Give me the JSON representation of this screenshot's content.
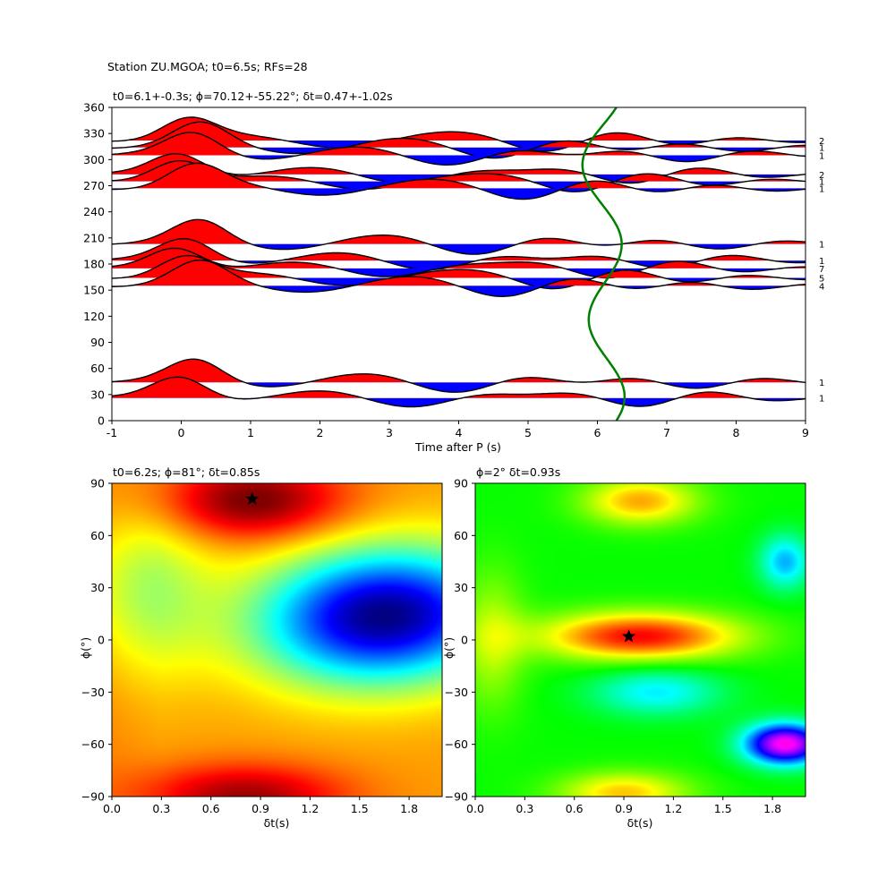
{
  "figure": {
    "suptitle": "Station ZU.MGOA; t0=6.5s; RFs=28"
  },
  "chart_data": [
    {
      "type": "line",
      "title": "t0=6.1+-0.3s; ϕ=70.12+-55.22°; δt=0.47+-1.02s",
      "xlabel": "Time after P (s)",
      "ylabel": "",
      "xlim": [
        -1,
        9
      ],
      "ylim": [
        0,
        360
      ],
      "xticks": [
        -1,
        0,
        1,
        2,
        3,
        4,
        5,
        6,
        7,
        8,
        9
      ],
      "yticks": [
        0,
        30,
        60,
        90,
        120,
        150,
        180,
        210,
        240,
        270,
        300,
        330,
        360
      ],
      "grid": false,
      "trace_labels": [
        {
          "baz": 322,
          "count": "2"
        },
        {
          "baz": 314,
          "count": "1"
        },
        {
          "baz": 305,
          "count": "1"
        },
        {
          "baz": 283,
          "count": "2"
        },
        {
          "baz": 275,
          "count": "1"
        },
        {
          "baz": 267,
          "count": "1"
        },
        {
          "baz": 203,
          "count": "1"
        },
        {
          "baz": 184,
          "count": "1"
        },
        {
          "baz": 175,
          "count": "7"
        },
        {
          "baz": 164,
          "count": "5"
        },
        {
          "baz": 155,
          "count": "4"
        },
        {
          "baz": 44,
          "count": "1"
        },
        {
          "baz": 26,
          "count": "1"
        }
      ],
      "fill_colors": {
        "positive": "#ff0000",
        "negative": "#0000ff"
      },
      "moveout_curve_color": "#008000",
      "moveout_curve": {
        "center_time": 6.1,
        "amplitude": 0.3
      }
    },
    {
      "type": "heatmap",
      "title": "t0=6.2s; ϕ=81°; δt=0.85s",
      "xlabel": "δt(s)",
      "ylabel": "ϕ(°)",
      "xlim": [
        0,
        2
      ],
      "ylim": [
        -90,
        90
      ],
      "xticks": [
        "0.0",
        "0.3",
        "0.6",
        "0.9",
        "1.2",
        "1.5",
        "1.8"
      ],
      "yticks": [
        "−90",
        "−60",
        "−30",
        "0",
        "30",
        "60",
        "90"
      ],
      "colormap": "jet",
      "best": {
        "dt": 0.85,
        "phi": 81
      }
    },
    {
      "type": "heatmap",
      "title": "ϕ=2° δt=0.93s",
      "xlabel": "δt(s)",
      "ylabel": "ϕ(°)",
      "xlim": [
        0,
        2
      ],
      "ylim": [
        -90,
        90
      ],
      "xticks": [
        "0.0",
        "0.3",
        "0.6",
        "0.9",
        "1.2",
        "1.5",
        "1.8"
      ],
      "yticks": [
        "−90",
        "−60",
        "−30",
        "0",
        "30",
        "60",
        "90"
      ],
      "colormap": "hsv",
      "best": {
        "dt": 0.93,
        "phi": 2
      }
    }
  ]
}
